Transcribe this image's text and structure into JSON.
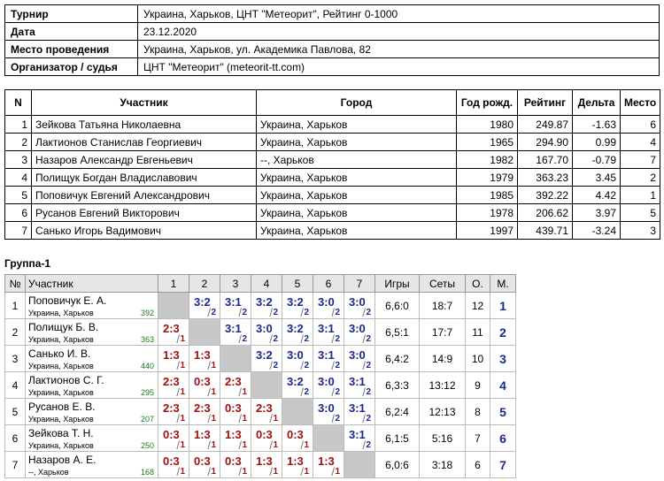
{
  "info": {
    "rows": [
      [
        "Турнир",
        "Украина, Харьков, ЦНТ \"Метеорит\", Рейтинг 0-1000"
      ],
      [
        "Дата",
        "23.12.2020"
      ],
      [
        "Место проведения",
        "Украина, Харьков, ул. Академика Павлова, 82"
      ],
      [
        "Организатор / судья",
        "ЦНТ \"Метеорит\" (meteorit-tt.com)"
      ]
    ]
  },
  "participants": {
    "headers": [
      "N",
      "Участник",
      "Город",
      "Год рожд.",
      "Рейтинг",
      "Дельта",
      "Место"
    ],
    "rows": [
      [
        "1",
        "Зейкова Татьяна Николаевна",
        "Украина, Харьков",
        "1980",
        "249.87",
        "-1.63",
        "6"
      ],
      [
        "2",
        "Лактионов Станислав Георгиевич",
        "Украина, Харьков",
        "1965",
        "294.90",
        "0.99",
        "4"
      ],
      [
        "3",
        "Назаров Александр Евгеньевич",
        "--, Харьков",
        "1982",
        "167.70",
        "-0.79",
        "7"
      ],
      [
        "4",
        "Полищук Богдан Владиславович",
        "Украина, Харьков",
        "1979",
        "363.23",
        "3.45",
        "2"
      ],
      [
        "5",
        "Поповичук Евгений Александрович",
        "Украина, Харьков",
        "1985",
        "392.22",
        "4.42",
        "1"
      ],
      [
        "6",
        "Русанов Евгений Викторович",
        "Украина, Харьков",
        "1978",
        "206.62",
        "3.97",
        "5"
      ],
      [
        "7",
        "Санько Игорь Вадимович",
        "Украина, Харьков",
        "1997",
        "439.71",
        "-3.24",
        "3"
      ]
    ]
  },
  "group": {
    "title": "Группа-1",
    "headers": [
      "№",
      "Участник",
      "1",
      "2",
      "3",
      "4",
      "5",
      "6",
      "7",
      "Игры",
      "Сеты",
      "О.",
      "М."
    ],
    "rows": [
      {
        "n": "1",
        "name": "Поповичук Е. А.",
        "city": "Украина, Харьков",
        "rating": "392",
        "cells": [
          null,
          [
            "3:2",
            "2"
          ],
          [
            "3:1",
            "2"
          ],
          [
            "3:2",
            "2"
          ],
          [
            "3:2",
            "2"
          ],
          [
            "3:0",
            "2"
          ],
          [
            "3:0",
            "2"
          ]
        ],
        "games": "6,6:0",
        "sets": "18:7",
        "points": "12",
        "place": "1"
      },
      {
        "n": "2",
        "name": "Полищук Б. В.",
        "city": "Украина, Харьков",
        "rating": "363",
        "cells": [
          [
            "2:3",
            "1"
          ],
          null,
          [
            "3:1",
            "2"
          ],
          [
            "3:0",
            "2"
          ],
          [
            "3:2",
            "2"
          ],
          [
            "3:1",
            "2"
          ],
          [
            "3:0",
            "2"
          ]
        ],
        "games": "6,5:1",
        "sets": "17:7",
        "points": "11",
        "place": "2"
      },
      {
        "n": "3",
        "name": "Санько И. В.",
        "city": "Украина, Харьков",
        "rating": "440",
        "cells": [
          [
            "1:3",
            "1"
          ],
          [
            "1:3",
            "1"
          ],
          null,
          [
            "3:2",
            "2"
          ],
          [
            "3:0",
            "2"
          ],
          [
            "3:1",
            "2"
          ],
          [
            "3:0",
            "2"
          ]
        ],
        "games": "6,4:2",
        "sets": "14:9",
        "points": "10",
        "place": "3"
      },
      {
        "n": "4",
        "name": "Лактионов С. Г.",
        "city": "Украина, Харьков",
        "rating": "295",
        "cells": [
          [
            "2:3",
            "1"
          ],
          [
            "0:3",
            "1"
          ],
          [
            "2:3",
            "1"
          ],
          null,
          [
            "3:2",
            "2"
          ],
          [
            "3:0",
            "2"
          ],
          [
            "3:1",
            "2"
          ]
        ],
        "games": "6,3:3",
        "sets": "13:12",
        "points": "9",
        "place": "4"
      },
      {
        "n": "5",
        "name": "Русанов Е. В.",
        "city": "Украина, Харьков",
        "rating": "207",
        "cells": [
          [
            "2:3",
            "1"
          ],
          [
            "2:3",
            "1"
          ],
          [
            "0:3",
            "1"
          ],
          [
            "2:3",
            "1"
          ],
          null,
          [
            "3:0",
            "2"
          ],
          [
            "3:1",
            "2"
          ]
        ],
        "games": "6,2:4",
        "sets": "12:13",
        "points": "8",
        "place": "5"
      },
      {
        "n": "6",
        "name": "Зейкова Т. Н.",
        "city": "Украина, Харьков",
        "rating": "250",
        "cells": [
          [
            "0:3",
            "1"
          ],
          [
            "1:3",
            "1"
          ],
          [
            "1:3",
            "1"
          ],
          [
            "0:3",
            "1"
          ],
          [
            "0:3",
            "1"
          ],
          null,
          [
            "3:1",
            "2"
          ]
        ],
        "games": "6,1:5",
        "sets": "5:16",
        "points": "7",
        "place": "6"
      },
      {
        "n": "7",
        "name": "Назаров А. Е.",
        "city": "--, Харьков",
        "rating": "168",
        "cells": [
          [
            "0:3",
            "1"
          ],
          [
            "0:3",
            "1"
          ],
          [
            "0:3",
            "1"
          ],
          [
            "1:3",
            "1"
          ],
          [
            "1:3",
            "1"
          ],
          [
            "1:3",
            "1"
          ],
          null
        ],
        "games": "6,0:6",
        "sets": "3:18",
        "points": "6",
        "place": "7"
      }
    ]
  }
}
